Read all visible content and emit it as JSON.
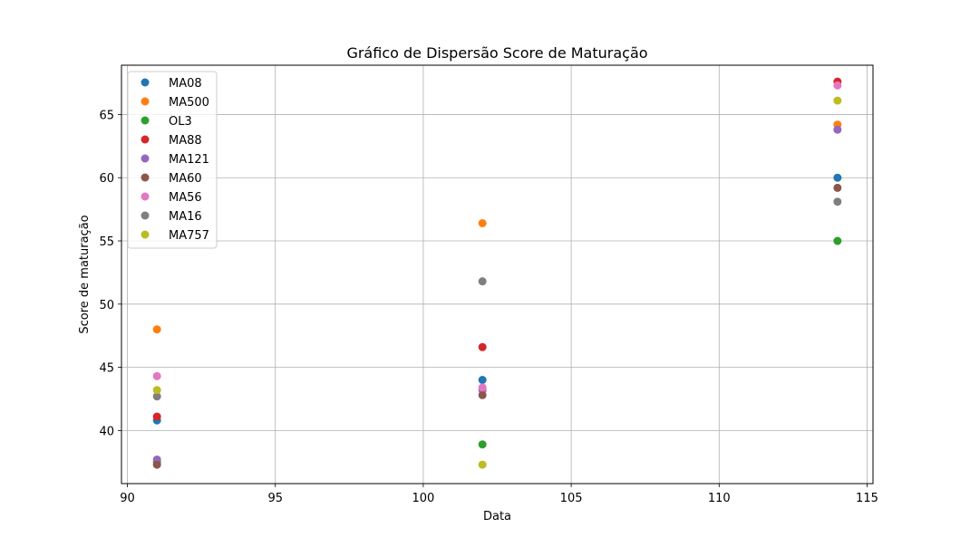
{
  "chart_data": {
    "type": "scatter",
    "title": "Gráfico de Dispersão Score de Maturação",
    "xlabel": "Data",
    "ylabel": "Score de maturação",
    "xlim": [
      89.8,
      115.2
    ],
    "ylim": [
      35.8,
      68.9
    ],
    "xticks": [
      90,
      95,
      100,
      105,
      110,
      115
    ],
    "yticks": [
      40,
      45,
      50,
      55,
      60,
      65
    ],
    "grid": true,
    "legend_position": "top-left",
    "x": [
      91,
      102,
      114
    ],
    "series": [
      {
        "name": "MA08",
        "color": "#1f77b4",
        "values": [
          40.8,
          44.0,
          60.0
        ]
      },
      {
        "name": "MA500",
        "color": "#ff7f0e",
        "values": [
          48.0,
          56.4,
          64.2
        ]
      },
      {
        "name": "OL3",
        "color": "#2ca02c",
        "values": [
          37.5,
          38.9,
          55.0
        ]
      },
      {
        "name": "MA88",
        "color": "#d62728",
        "values": [
          41.1,
          46.6,
          67.6
        ]
      },
      {
        "name": "MA121",
        "color": "#9467bd",
        "values": [
          37.7,
          43.2,
          63.8
        ]
      },
      {
        "name": "MA60",
        "color": "#8c564b",
        "values": [
          37.3,
          42.8,
          59.2
        ]
      },
      {
        "name": "MA56",
        "color": "#e377c2",
        "values": [
          44.3,
          43.4,
          67.3
        ]
      },
      {
        "name": "MA16",
        "color": "#7f7f7f",
        "values": [
          42.7,
          51.8,
          58.1
        ]
      },
      {
        "name": "MA757",
        "color": "#bcbd22",
        "values": [
          43.2,
          37.3,
          66.1
        ]
      }
    ]
  }
}
